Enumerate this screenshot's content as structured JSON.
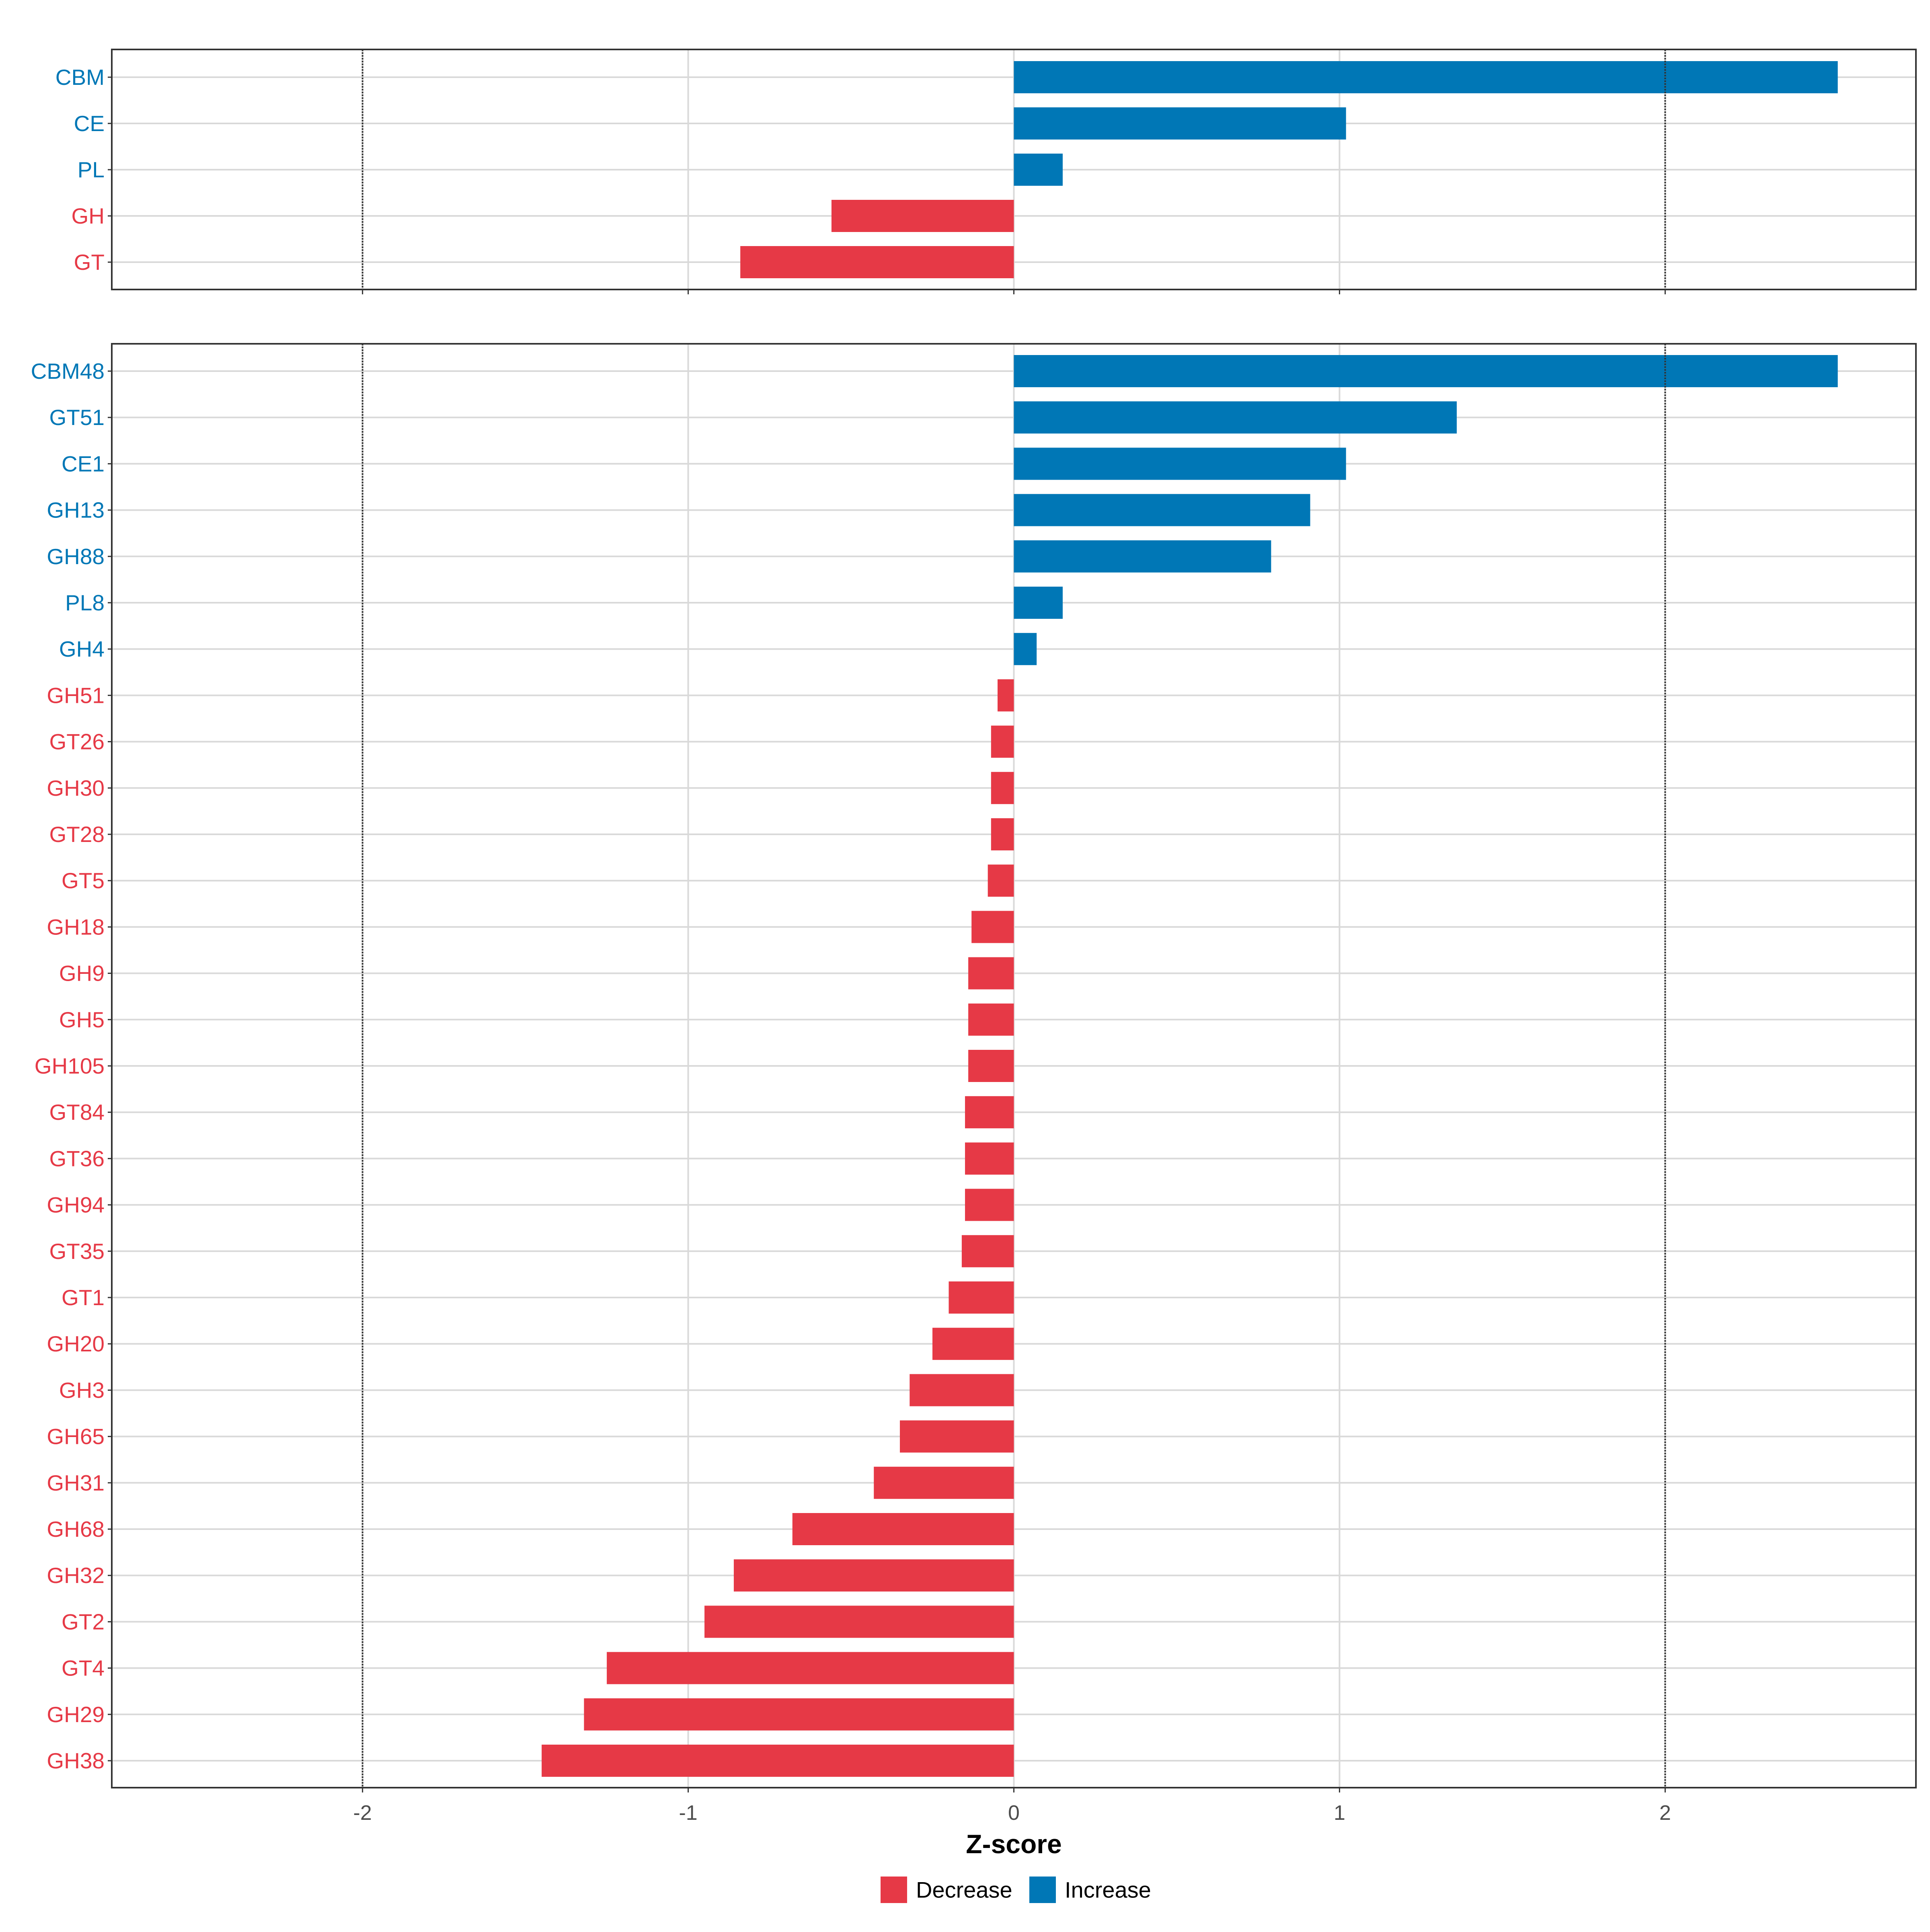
{
  "chart_data": [
    {
      "type": "bar",
      "orientation": "horizontal",
      "panel": "class",
      "categories": [
        "CBM",
        "CE",
        "PL",
        "GH",
        "GT"
      ],
      "values": [
        2.53,
        1.02,
        0.15,
        -0.56,
        -0.84
      ],
      "xlim": [
        -2.77,
        2.77
      ],
      "grid": true,
      "reference_lines": [
        -2,
        2
      ]
    },
    {
      "type": "bar",
      "orientation": "horizontal",
      "panel": "family",
      "categories": [
        "CBM48",
        "GT51",
        "CE1",
        "GH13",
        "GH88",
        "PL8",
        "GH4",
        "GH51",
        "GT26",
        "GH30",
        "GT28",
        "GT5",
        "GH18",
        "GH9",
        "GH5",
        "GH105",
        "GT84",
        "GT36",
        "GH94",
        "GT35",
        "GT1",
        "GH20",
        "GH3",
        "GH65",
        "GH31",
        "GH68",
        "GH32",
        "GT2",
        "GT4",
        "GH29",
        "GH38"
      ],
      "values": [
        2.53,
        1.36,
        1.02,
        0.91,
        0.79,
        0.15,
        0.07,
        -0.05,
        -0.07,
        -0.07,
        -0.07,
        -0.08,
        -0.13,
        -0.14,
        -0.14,
        -0.14,
        -0.15,
        -0.15,
        -0.15,
        -0.16,
        -0.2,
        -0.25,
        -0.32,
        -0.35,
        -0.43,
        -0.68,
        -0.86,
        -0.95,
        -1.25,
        -1.32,
        -1.45
      ],
      "xlim": [
        -2.77,
        2.77
      ],
      "grid": true,
      "reference_lines": [
        -2,
        2
      ],
      "x_ticks": [
        -2,
        -1,
        0,
        1,
        2
      ],
      "x_tick_labels": [
        "-2",
        "-1",
        "0",
        "1",
        "2"
      ],
      "xlabel": "Z-score",
      "legend": {
        "position": "bottom",
        "entries": [
          {
            "label": "Decrease",
            "color": "#E63946"
          },
          {
            "label": "Increase",
            "color": "#0077B6"
          }
        ]
      }
    }
  ],
  "colors": {
    "decrease": "#E63946",
    "increase": "#0077B6",
    "grid": "#d9d9d9",
    "panel_border": "#333333",
    "reference_line": "#333333"
  }
}
